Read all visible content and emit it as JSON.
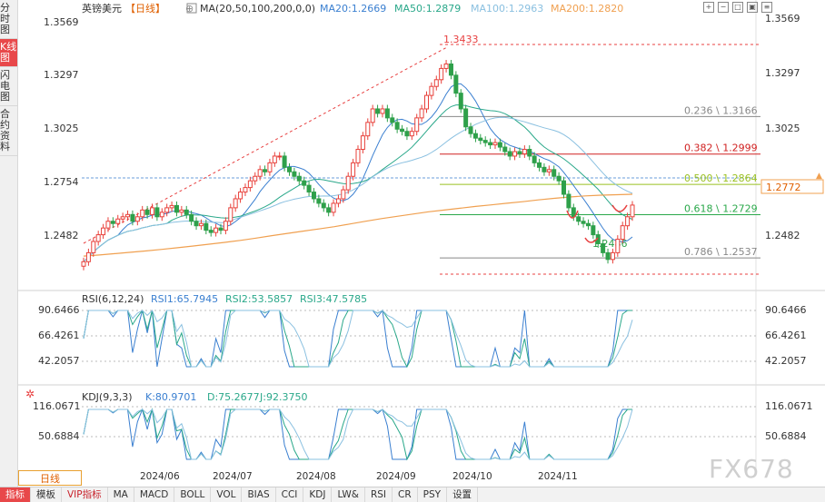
{
  "sidebar": {
    "tabs": [
      {
        "label": "分时图",
        "active": false
      },
      {
        "label": "K线图",
        "active": true
      },
      {
        "label": "闪电图",
        "active": false
      },
      {
        "label": "合约资料",
        "active": false
      }
    ]
  },
  "header": {
    "symbol": "英镑美元",
    "period": "【日线】",
    "ma_label": "MA(20,50,100,200,0,0)",
    "ma20": "MA20:1.2669",
    "ma50": "MA50:1.2879",
    "ma100": "MA100:1.2963",
    "ma200": "MA200:1.2820"
  },
  "rsi_header": {
    "name": "RSI(6,12,24)",
    "rsi1": "RSI1:65.7945",
    "rsi2": "RSI2:53.5857",
    "rsi3": "RSI3:47.5785"
  },
  "kdj_header": {
    "name": "KDJ(9,3,3)",
    "k": "K:80.9701",
    "d": "D:75.2677",
    "j": "J:92.3750"
  },
  "price_axis": [
    "1.3569",
    "1.3297",
    "1.3025",
    "1.2754",
    "1.2482"
  ],
  "current_price": "1.2772",
  "rsi_axis": [
    "90.6466",
    "66.4261",
    "42.2057"
  ],
  "kdj_axis": [
    "116.0671",
    "50.6884"
  ],
  "dates": [
    "2024/06",
    "2024/07",
    "2024/08",
    "2024/09",
    "2024/10",
    "2024/11"
  ],
  "period_tab": "日线",
  "toolbar": [
    "指标",
    "模板",
    "VIP指标",
    "MA",
    "MACD",
    "BOLL",
    "VOL",
    "BIAS",
    "CCI",
    "KDJ",
    "LW&",
    "RSI",
    "CR",
    "PSY",
    "设置"
  ],
  "watermark": "FX678",
  "colors": {
    "up": "#e8403a",
    "down": "#2ea04a",
    "ma20": "#3a7fd0",
    "ma50": "#2aa88a",
    "ma100": "#8ac0e0",
    "ma200": "#f0a050"
  },
  "chart_data": {
    "type": "candlestick",
    "title": "英镑美元【日线】",
    "ylim": [
      1.24,
      1.362
    ],
    "x_range": [
      "2024/05",
      "2024/11"
    ],
    "key_levels": {
      "high": 1.3433,
      "low": 1.2486
    },
    "fibonacci": [
      {
        "label": "0.236 \\ 1.3166",
        "value": 1.3166,
        "color": "#888888"
      },
      {
        "label": "0.382 \\ 1.2999",
        "value": 1.2999,
        "color": "#d02020"
      },
      {
        "label": "0.500 \\ 1.2864",
        "value": 1.2864,
        "color": "#9ac020"
      },
      {
        "label": "0.618 \\ 1.2729",
        "value": 1.2729,
        "color": "#2aa84a"
      },
      {
        "label": "0.786 \\ 1.2537",
        "value": 1.2537,
        "color": "#888888"
      }
    ],
    "candles_close": [
      1.252,
      1.256,
      1.261,
      1.264,
      1.267,
      1.27,
      1.269,
      1.271,
      1.272,
      1.273,
      1.27,
      1.272,
      1.275,
      1.273,
      1.276,
      1.272,
      1.274,
      1.276,
      1.277,
      1.274,
      1.275,
      1.273,
      1.27,
      1.268,
      1.269,
      1.266,
      1.265,
      1.267,
      1.266,
      1.27,
      1.276,
      1.28,
      1.283,
      1.285,
      1.288,
      1.29,
      1.293,
      1.292,
      1.296,
      1.299,
      1.299,
      1.294,
      1.292,
      1.29,
      1.288,
      1.286,
      1.283,
      1.28,
      1.278,
      1.276,
      1.274,
      1.278,
      1.28,
      1.284,
      1.29,
      1.296,
      1.302,
      1.308,
      1.314,
      1.32,
      1.318,
      1.32,
      1.316,
      1.314,
      1.311,
      1.31,
      1.308,
      1.31,
      1.316,
      1.32,
      1.326,
      1.33,
      1.333,
      1.338,
      1.34,
      1.335,
      1.327,
      1.32,
      1.312,
      1.309,
      1.307,
      1.306,
      1.305,
      1.304,
      1.305,
      1.303,
      1.301,
      1.299,
      1.301,
      1.3,
      1.302,
      1.299,
      1.296,
      1.294,
      1.292,
      1.293,
      1.29,
      1.288,
      1.282,
      1.276,
      1.272,
      1.27,
      1.269,
      1.268,
      1.264,
      1.26,
      1.256,
      1.253,
      1.256,
      1.262,
      1.268,
      1.272,
      1.2772
    ],
    "ma200": [
      1.2545,
      1.255,
      1.2556,
      1.2562,
      1.2568,
      1.2575,
      1.2582,
      1.259,
      1.2598,
      1.2606,
      1.2615,
      1.2625,
      1.2636,
      1.2646,
      1.2656,
      1.2666,
      1.2676,
      1.2688,
      1.27,
      1.2712,
      1.2722,
      1.2732,
      1.2742,
      1.275,
      1.2758,
      1.2766,
      1.2773,
      1.278,
      1.2787,
      1.2795,
      1.2802,
      1.2808,
      1.2813,
      1.2816,
      1.2818,
      1.282
    ],
    "rsi_axis_ticks": [
      90.6466,
      66.4261,
      42.2057
    ],
    "kdj_axis_ticks": [
      116.0671,
      50.6884
    ]
  }
}
